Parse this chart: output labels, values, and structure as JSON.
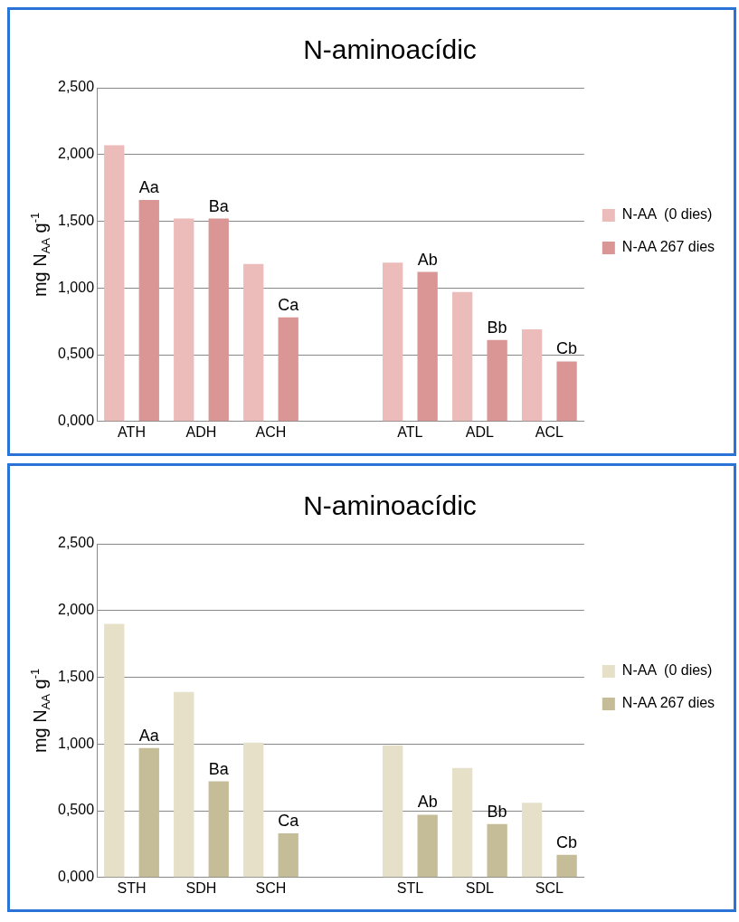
{
  "chart_data": [
    {
      "type": "bar",
      "title": "N-aminoacídic",
      "ylabel": "mg N$_{AA}$ g$^{-1}$",
      "categories": [
        "ATH",
        "ADH",
        "ACH",
        null,
        "ATL",
        "ADL",
        "ACL"
      ],
      "series": [
        {
          "name": "N-AA  (0 dies)",
          "color": "#ecbcbb",
          "values": [
            2.07,
            1.52,
            1.18,
            null,
            1.19,
            0.97,
            0.69
          ]
        },
        {
          "name": "N-AA 267 dies",
          "color": "#d99694",
          "values": [
            1.66,
            1.52,
            0.78,
            null,
            1.12,
            0.61,
            0.45
          ],
          "value_labels": [
            "Aa",
            "Ba",
            "Ca",
            null,
            "Ab",
            "Bb",
            "Cb"
          ]
        }
      ],
      "ylim": [
        0,
        2.5
      ],
      "yticks": [
        {
          "value": 0,
          "label": "0,000"
        },
        {
          "value": 0.5,
          "label": "0,500"
        },
        {
          "value": 1,
          "label": "1,000"
        },
        {
          "value": 1.5,
          "label": "1,500"
        },
        {
          "value": 2,
          "label": "2,000"
        },
        {
          "value": 2.5,
          "label": "2,500"
        }
      ],
      "grid": "y",
      "legend": "right"
    },
    {
      "type": "bar",
      "title": "N-aminoacídic",
      "ylabel": "mg N$_{AA}$ g$^{-1}$",
      "categories": [
        "STH",
        "SDH",
        "SCH",
        null,
        "STL",
        "SDL",
        "SCL"
      ],
      "series": [
        {
          "name": "N-AA  (0 dies)",
          "color": "#e6e0c8",
          "values": [
            1.9,
            1.39,
            1.01,
            null,
            0.99,
            0.82,
            0.56
          ]
        },
        {
          "name": "N-AA 267 dies",
          "color": "#c4bd97",
          "values": [
            0.97,
            0.72,
            0.33,
            null,
            0.47,
            0.4,
            0.17
          ],
          "value_labels": [
            "Aa",
            "Ba",
            "Ca",
            null,
            "Ab",
            "Bb",
            "Cb"
          ]
        }
      ],
      "ylim": [
        0,
        2.5
      ],
      "yticks": [
        {
          "value": 0,
          "label": "0,000"
        },
        {
          "value": 0.5,
          "label": "0,500"
        },
        {
          "value": 1,
          "label": "1,000"
        },
        {
          "value": 1.5,
          "label": "1,500"
        },
        {
          "value": 2,
          "label": "2,000"
        },
        {
          "value": 2.5,
          "label": "2,500"
        }
      ],
      "grid": "y",
      "legend": "right"
    }
  ]
}
